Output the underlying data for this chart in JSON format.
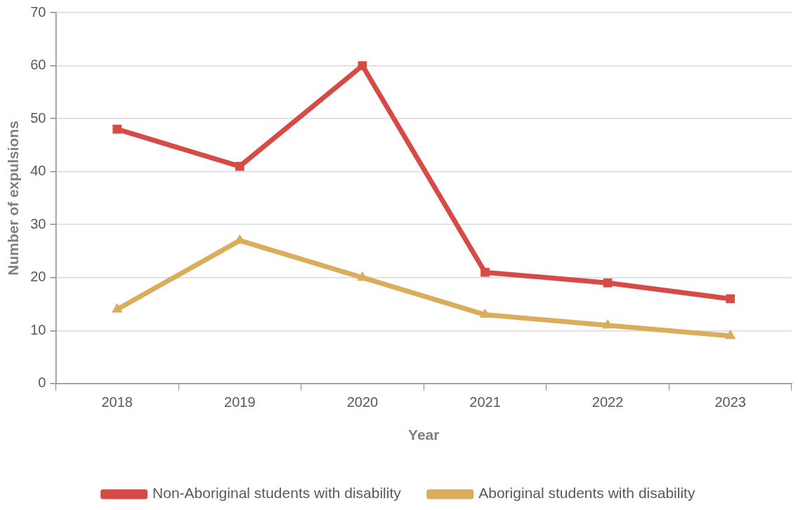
{
  "chart_data": {
    "type": "line",
    "xlabel": "Year",
    "ylabel": "Number of expulsions",
    "categories": [
      "2018",
      "2019",
      "2020",
      "2021",
      "2022",
      "2023"
    ],
    "series": [
      {
        "name": "Non-Aboriginal students with disability",
        "color": "#d64b45",
        "marker": "square",
        "values": [
          48,
          41,
          60,
          21,
          19,
          16
        ]
      },
      {
        "name": "Aboriginal students with disability",
        "color": "#d9ad5b",
        "marker": "triangle",
        "values": [
          14,
          27,
          20,
          13,
          11,
          9
        ]
      }
    ],
    "ylim": [
      0,
      70
    ],
    "yticks": [
      0,
      10,
      20,
      30,
      40,
      50,
      60,
      70
    ],
    "grid": "y",
    "legend": "bottom",
    "line_style": "solid"
  }
}
